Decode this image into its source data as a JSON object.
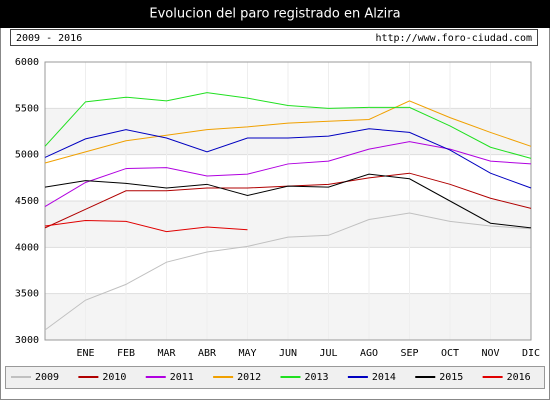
{
  "chart_data": {
    "type": "line",
    "title": "Evolucion del paro registrado en Alzira",
    "subtitle": "2009 - 2016",
    "source": "http://www.foro-ciudad.com",
    "categories": [
      null,
      "ENE",
      "FEB",
      "MAR",
      "ABR",
      "MAY",
      "JUN",
      "JUL",
      "AGO",
      "SEP",
      "OCT",
      "NOV",
      "DIC"
    ],
    "ylim": [
      3000,
      6000
    ],
    "yticks": [
      3000,
      3500,
      4000,
      4500,
      5000,
      5500,
      6000
    ],
    "grid": true,
    "series": [
      {
        "name": "2009",
        "color": "#c0c0c0",
        "values": [
          3108,
          3430,
          3600,
          3840,
          3950,
          4010,
          4110,
          4130,
          4300,
          4370,
          4280,
          4230,
          4200
        ]
      },
      {
        "name": "2010",
        "color": "#b00000",
        "values": [
          4210,
          4410,
          4610,
          4610,
          4640,
          4640,
          4660,
          4680,
          4750,
          4800,
          4680,
          4530,
          4420
        ]
      },
      {
        "name": "2011",
        "color": "#b000e0",
        "values": [
          4440,
          4700,
          4850,
          4860,
          4770,
          4790,
          4900,
          4930,
          5060,
          5140,
          5060,
          4930,
          4900
        ]
      },
      {
        "name": "2012",
        "color": "#f0a000",
        "values": [
          4910,
          5030,
          5150,
          5210,
          5270,
          5300,
          5340,
          5360,
          5380,
          5580,
          5400,
          5240,
          5090
        ]
      },
      {
        "name": "2013",
        "color": "#20e020",
        "values": [
          5090,
          5570,
          5620,
          5580,
          5670,
          5610,
          5530,
          5500,
          5510,
          5510,
          5310,
          5080,
          4960
        ]
      },
      {
        "name": "2014",
        "color": "#0000c0",
        "values": [
          4970,
          5170,
          5270,
          5180,
          5030,
          5180,
          5180,
          5200,
          5280,
          5240,
          5050,
          4800,
          4640
        ]
      },
      {
        "name": "2015",
        "color": "#000000",
        "values": [
          4650,
          4720,
          4690,
          4640,
          4680,
          4560,
          4660,
          4650,
          4790,
          4740,
          4500,
          4260,
          4210
        ]
      },
      {
        "name": "2016",
        "color": "#e00000",
        "values": [
          4230,
          4290,
          4280,
          4170,
          4220,
          4190,
          null,
          null,
          null,
          null,
          null,
          null,
          null
        ]
      }
    ]
  }
}
